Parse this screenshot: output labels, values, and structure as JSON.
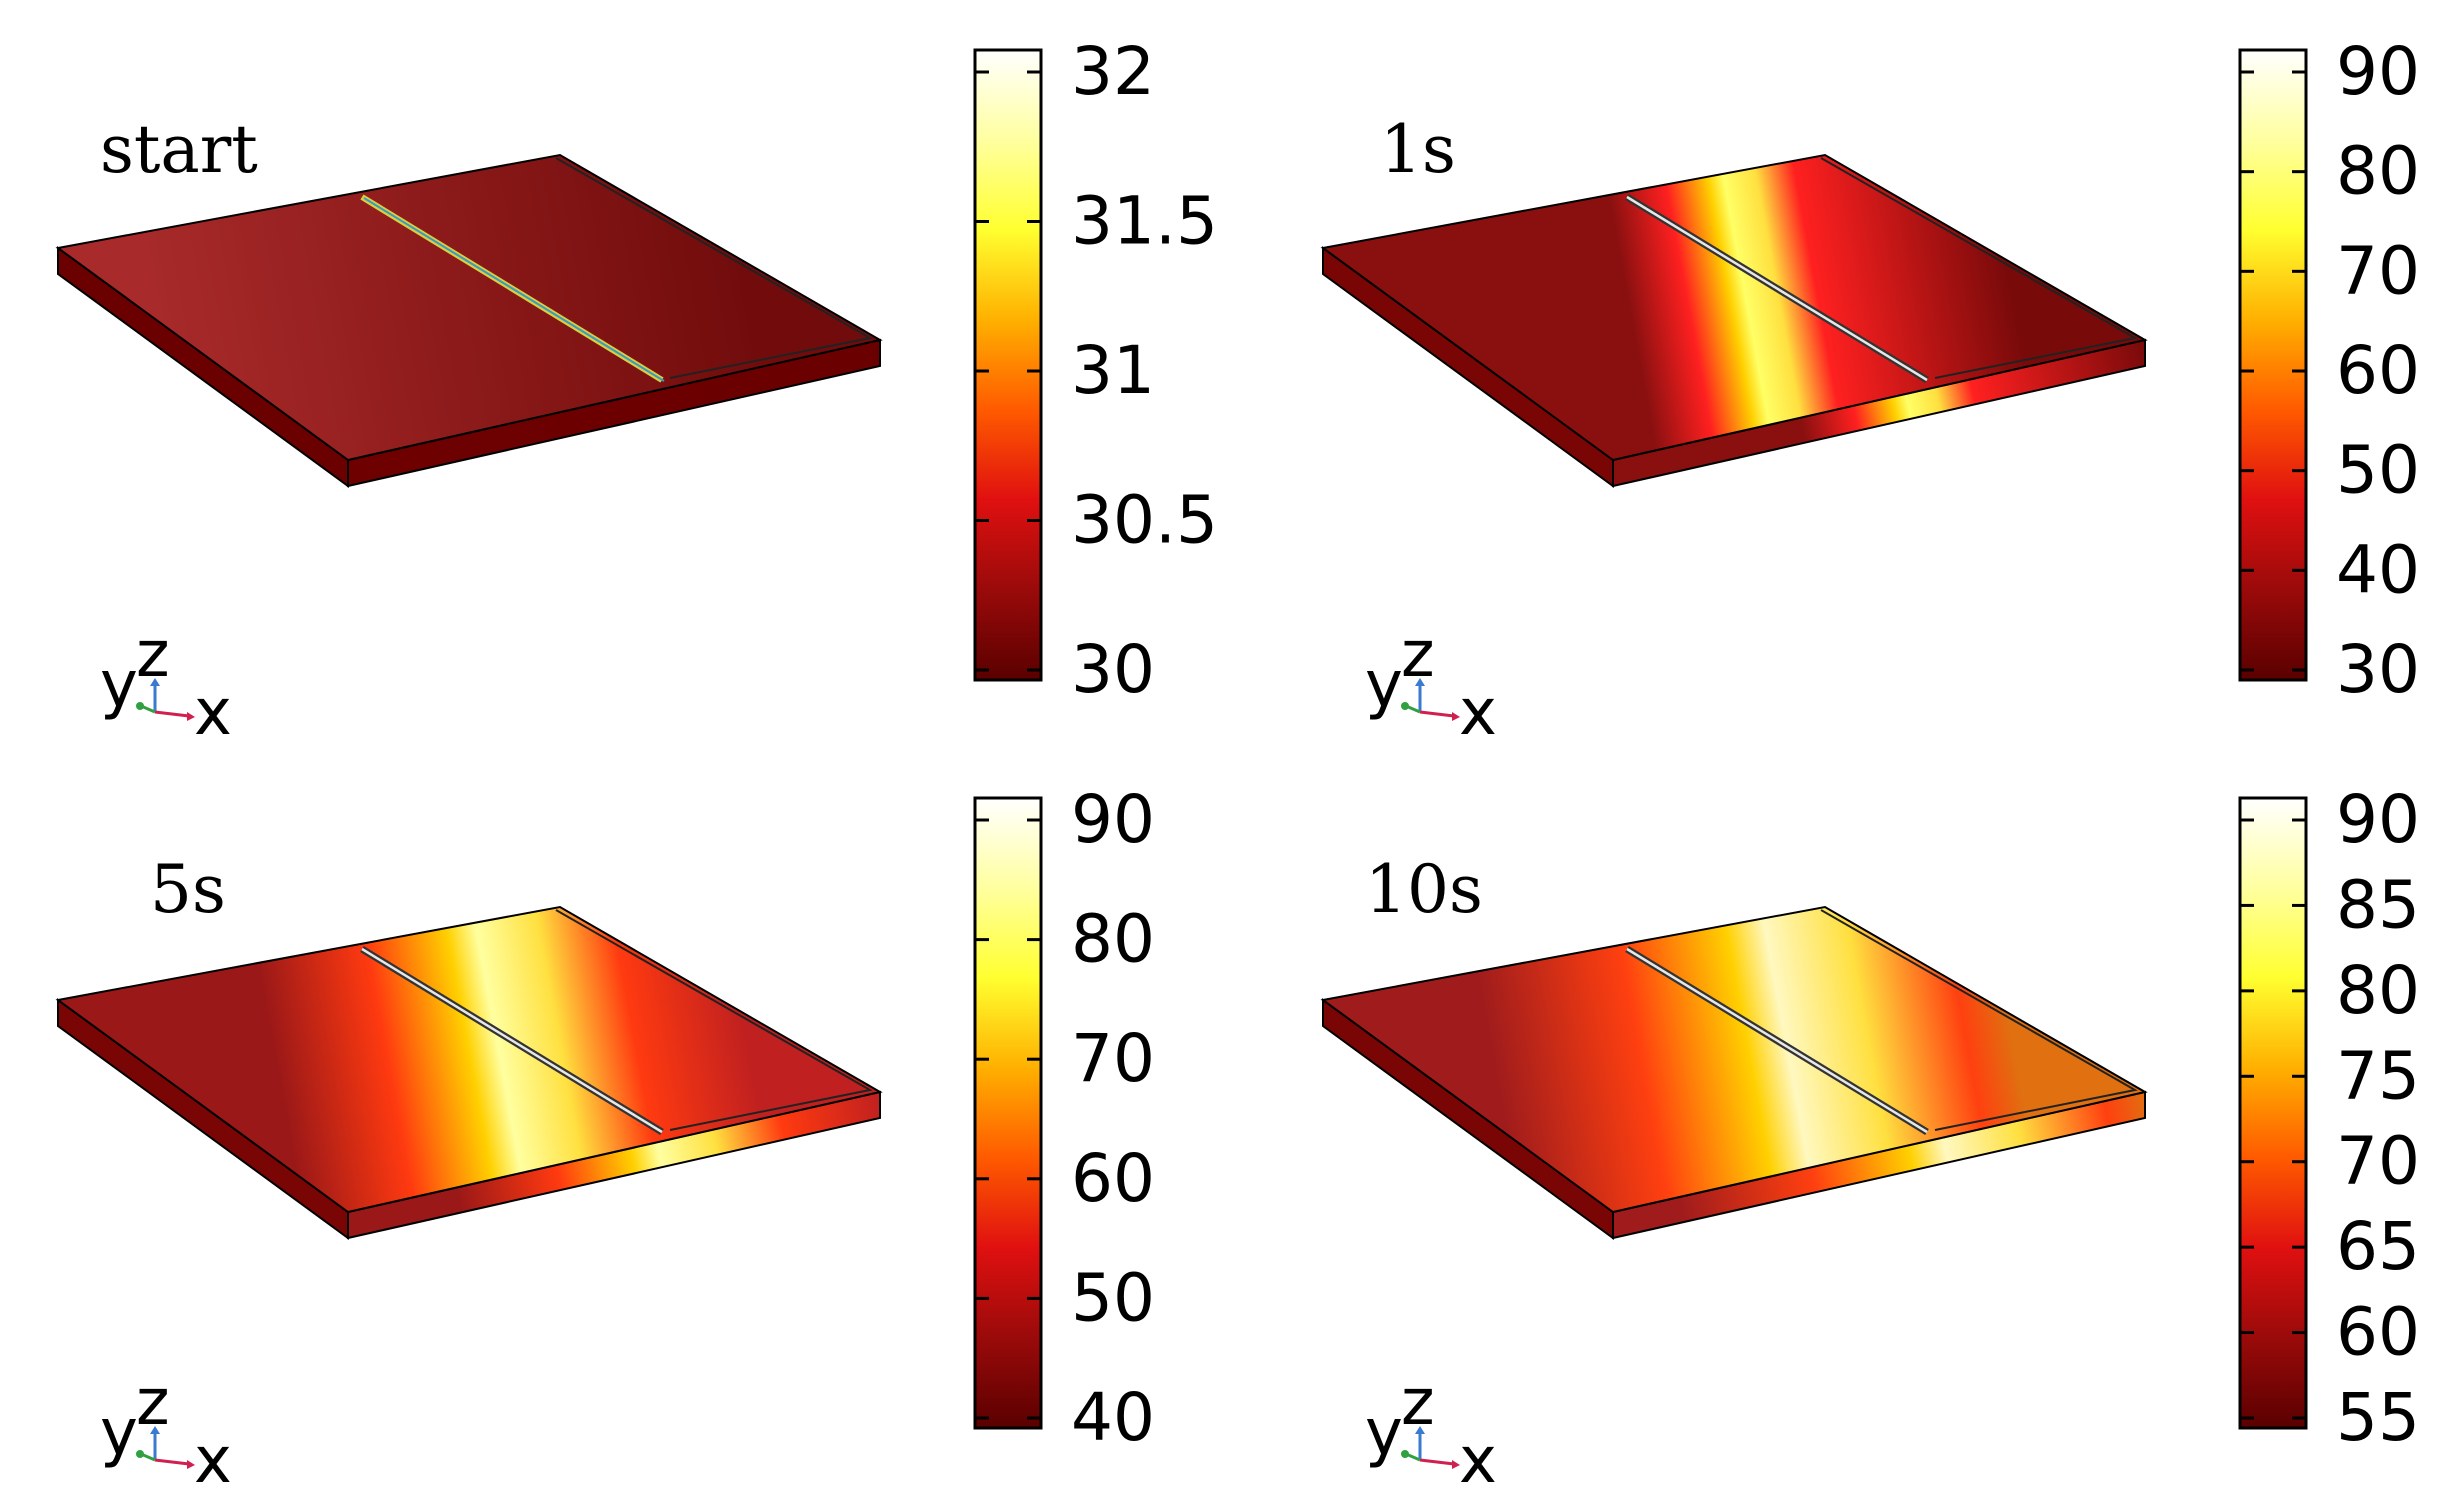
{
  "panels": [
    {
      "id": "start",
      "label": "start",
      "colorbar_ticks": [
        "32",
        "31.5",
        "31",
        "30.5",
        "30"
      ],
      "stops": {
        "front_left": "#b03030",
        "front_mid": "#8a1414",
        "front_right": "#6e0a0a",
        "top_left": "#a82a2a",
        "top_mid": "#8c1a1a",
        "top_right": "#720c0c",
        "side_left": "#6e0000",
        "side_right": "#6a0000",
        "hot_band": false
      }
    },
    {
      "id": "1s",
      "label": "1s",
      "colorbar_ticks": [
        "90",
        "80",
        "70",
        "60",
        "50",
        "40",
        "30"
      ],
      "stops": {
        "hot_band": true,
        "band_center": 0.55,
        "band_width": 0.22,
        "base_color": "#8a1010",
        "edge_color": "#780a0a",
        "peak_color": "#ffff66",
        "mid_color": "#ff2020"
      }
    },
    {
      "id": "5s",
      "label": "5s",
      "colorbar_ticks": [
        "90",
        "80",
        "70",
        "60",
        "50",
        "40"
      ],
      "stops": {
        "hot_band": true,
        "band_center": 0.58,
        "band_width": 0.42,
        "base_color": "#9a1818",
        "edge_color": "#c02020",
        "peak_color": "#ffffa0",
        "mid_color": "#ff3a10"
      }
    },
    {
      "id": "10s",
      "label": "10s",
      "colorbar_ticks": [
        "90",
        "85",
        "80",
        "75",
        "70",
        "65",
        "60",
        "55"
      ],
      "stops": {
        "hot_band": true,
        "band_center": 0.62,
        "band_width": 0.55,
        "base_color": "#a01c1c",
        "edge_color": "#e07010",
        "peak_color": "#fff8c0",
        "mid_color": "#ff4010"
      }
    }
  ],
  "axis_triad": {
    "x": "x",
    "y": "y",
    "z": "z"
  },
  "colormap": [
    "#5a0000",
    "#9a0a0a",
    "#e01010",
    "#ff5a00",
    "#ffb000",
    "#ffff30",
    "#ffffa0",
    "#ffffff"
  ]
}
